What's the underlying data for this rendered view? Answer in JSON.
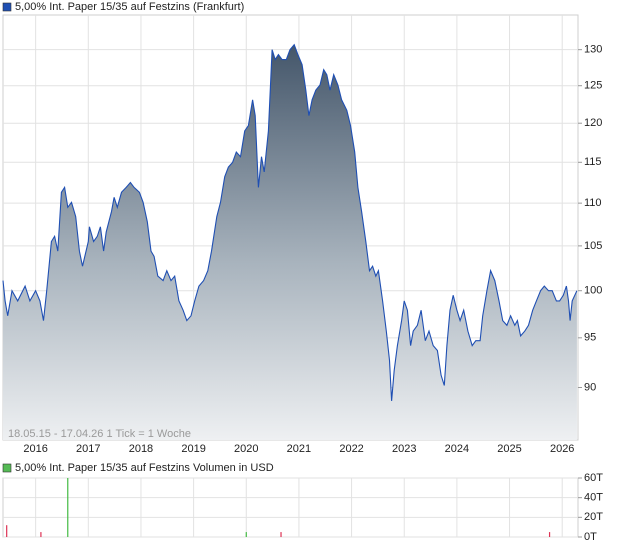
{
  "chart_data": [
    {
      "type": "area",
      "series": [
        {
          "name": "5,00% Int. Paper 15/35 auf Festzins (Frankfurt)",
          "color": "#1f4fb3",
          "x": [
            2015.38,
            2015.42,
            2015.47,
            2015.55,
            2015.66,
            2015.8,
            2015.89,
            2016.0,
            2016.08,
            2016.15,
            2016.21,
            2016.3,
            2016.36,
            2016.42,
            2016.49,
            2016.55,
            2016.61,
            2016.68,
            2016.76,
            2016.83,
            2016.89,
            2017.0,
            2017.02,
            2017.1,
            2017.17,
            2017.23,
            2017.29,
            2017.34,
            2017.44,
            2017.49,
            2017.55,
            2017.63,
            2017.72,
            2017.8,
            2017.87,
            2017.97,
            2018.04,
            2018.12,
            2018.19,
            2018.25,
            2018.32,
            2018.42,
            2018.49,
            2018.57,
            2018.64,
            2018.72,
            2018.8,
            2018.87,
            2018.95,
            2019.02,
            2019.1,
            2019.19,
            2019.27,
            2019.34,
            2019.44,
            2019.51,
            2019.59,
            2019.66,
            2019.74,
            2019.81,
            2019.89,
            2019.97,
            2020.04,
            2020.12,
            2020.17,
            2020.23,
            2020.29,
            2020.34,
            2020.42,
            2020.49,
            2020.55,
            2020.61,
            2020.68,
            2020.76,
            2020.83,
            2020.91,
            2020.98,
            2021.06,
            2021.13,
            2021.19,
            2021.25,
            2021.32,
            2021.4,
            2021.47,
            2021.53,
            2021.59,
            2021.66,
            2021.74,
            2021.81,
            2021.91,
            2021.98,
            2022.06,
            2022.12,
            2022.19,
            2022.27,
            2022.34,
            2022.4,
            2022.46,
            2022.51,
            2022.59,
            2022.66,
            2022.72,
            2022.76,
            2022.81,
            2022.87,
            2022.95,
            2023.0,
            2023.06,
            2023.12,
            2023.17,
            2023.25,
            2023.32,
            2023.4,
            2023.47,
            2023.55,
            2023.63,
            2023.7,
            2023.76,
            2023.81,
            2023.87,
            2023.93,
            2024.0,
            2024.06,
            2024.13,
            2024.21,
            2024.29,
            2024.36,
            2024.44,
            2024.49,
            2024.57,
            2024.64,
            2024.72,
            2024.8,
            2024.87,
            2024.95,
            2025.02,
            2025.1,
            2025.15,
            2025.21,
            2025.29,
            2025.36,
            2025.44,
            2025.51,
            2025.59,
            2025.66,
            2025.74,
            2025.81,
            2025.89,
            2025.95,
            2026.02,
            2026.08,
            2026.12,
            2026.15,
            2026.19,
            2026.28
          ],
          "values": [
            101.1,
            98.9,
            97.3,
            100.0,
            98.9,
            100.5,
            98.9,
            100.0,
            98.9,
            96.8,
            100.0,
            105.5,
            106.1,
            104.4,
            111.3,
            111.9,
            109.5,
            110.1,
            108.4,
            104.4,
            102.7,
            105.5,
            107.2,
            105.5,
            106.1,
            107.2,
            104.4,
            106.6,
            109.0,
            110.7,
            109.5,
            111.3,
            111.9,
            112.5,
            111.9,
            111.3,
            110.1,
            107.8,
            104.4,
            103.8,
            101.6,
            101.1,
            102.2,
            101.1,
            101.6,
            98.9,
            97.9,
            96.8,
            97.3,
            98.9,
            100.5,
            101.1,
            102.2,
            104.4,
            108.4,
            110.1,
            113.2,
            114.4,
            115.0,
            116.3,
            115.7,
            119.0,
            119.7,
            123.1,
            121.0,
            111.9,
            115.7,
            113.8,
            119.0,
            130.0,
            128.6,
            129.3,
            128.6,
            128.6,
            130.0,
            130.7,
            129.3,
            127.9,
            124.4,
            121.0,
            123.1,
            124.4,
            125.1,
            127.2,
            126.5,
            124.4,
            126.5,
            125.1,
            123.1,
            121.7,
            119.7,
            116.3,
            111.9,
            109.0,
            105.5,
            102.2,
            102.7,
            101.6,
            102.2,
            98.9,
            95.7,
            92.7,
            88.7,
            91.7,
            94.2,
            96.8,
            98.9,
            97.9,
            94.2,
            95.7,
            96.3,
            97.9,
            94.7,
            95.7,
            94.2,
            93.7,
            91.2,
            90.2,
            94.2,
            97.9,
            99.5,
            97.9,
            96.8,
            97.9,
            95.7,
            94.2,
            94.7,
            94.7,
            97.3,
            100.0,
            102.2,
            101.1,
            98.9,
            96.8,
            96.3,
            97.3,
            96.3,
            96.8,
            95.2,
            95.7,
            96.3,
            97.9,
            98.9,
            100.0,
            100.5,
            100.0,
            100.0,
            98.9,
            98.9,
            99.5,
            100.5,
            98.9,
            96.8,
            98.9,
            100.0
          ]
        }
      ],
      "xlim": [
        2015.38,
        2026.3
      ],
      "xticks": [
        2016,
        2017,
        2018,
        2019,
        2020,
        2021,
        2022,
        2023,
        2024,
        2025,
        2026
      ],
      "ylim": [
        85,
        135
      ],
      "log_y": true,
      "yticks": [
        90,
        95,
        100,
        105,
        110,
        115,
        120,
        125,
        130
      ],
      "grid": true,
      "note": "18.05.15 - 17.04.26   1 Tick = 1 Woche"
    },
    {
      "type": "bar",
      "series": [
        {
          "name": "5,00% Int. Paper 15/35 auf Festzins Volumen in USD",
          "color": "#55bb55",
          "x": [
            2015.45,
            2016.1,
            2016.61,
            2020.0,
            2020.66,
            2025.76
          ],
          "values": [
            12000,
            5000,
            60000,
            5000,
            5000,
            5000
          ],
          "colors": [
            "#dd3355",
            "#dd3355",
            "#44bb44",
            "#44bb44",
            "#dd3355",
            "#dd3355"
          ]
        }
      ],
      "xlim": [
        2015.38,
        2026.3
      ],
      "xticks": [
        2016,
        2017,
        2018,
        2019,
        2020,
        2021,
        2022,
        2023,
        2024,
        2025,
        2026
      ],
      "ylim": [
        0,
        60000
      ],
      "yticks": [
        {
          "value": 0,
          "label": "0T"
        },
        {
          "value": 20000,
          "label": "20T"
        },
        {
          "value": 40000,
          "label": "40T"
        },
        {
          "value": 60000,
          "label": "60T"
        }
      ],
      "grid": true
    }
  ]
}
